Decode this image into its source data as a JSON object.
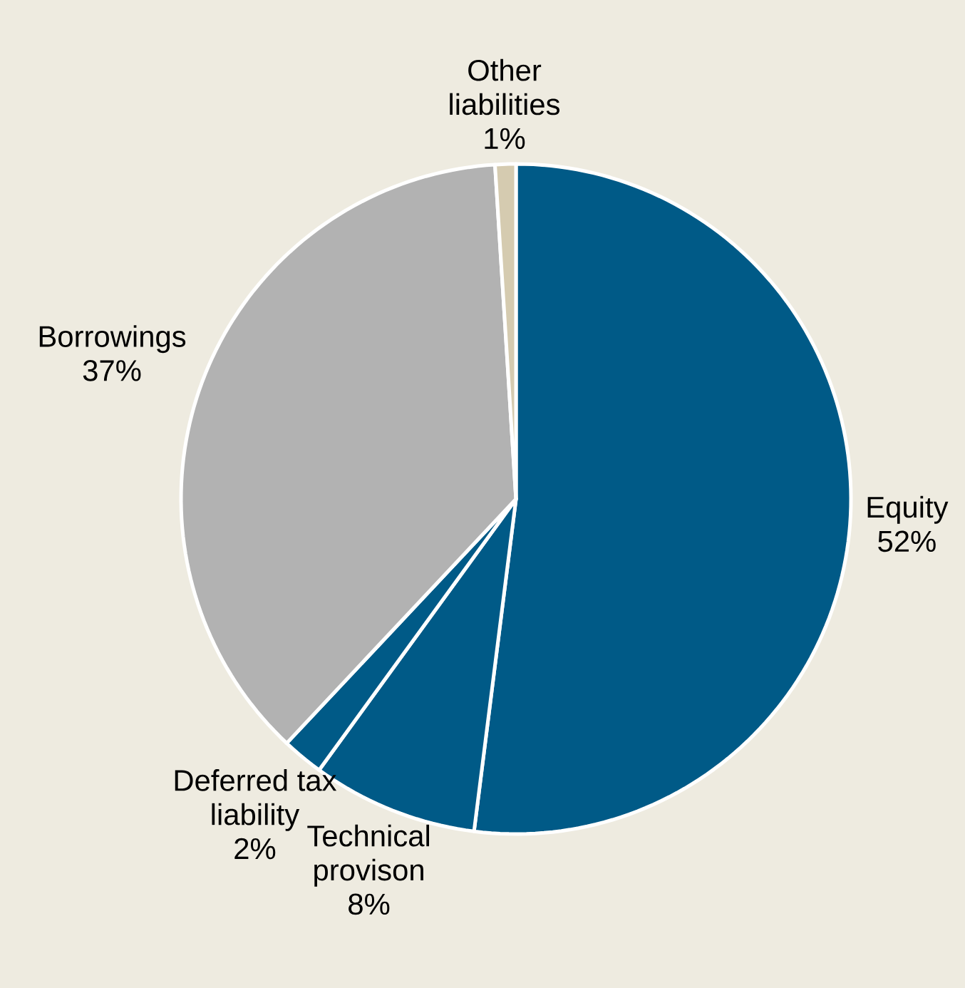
{
  "chart_data": {
    "type": "pie",
    "categories": [
      "Equity",
      "Technical provison",
      "Deferred tax liability",
      "Borrowings",
      "Other liabilities"
    ],
    "values": [
      52,
      8,
      2,
      37,
      1
    ],
    "value_labels": [
      "52%",
      "8%",
      "2%",
      "37%",
      "1%"
    ],
    "colors": [
      "#005a87",
      "#005a87",
      "#005a87",
      "#b2b2b2",
      "#d5cbb0"
    ]
  }
}
